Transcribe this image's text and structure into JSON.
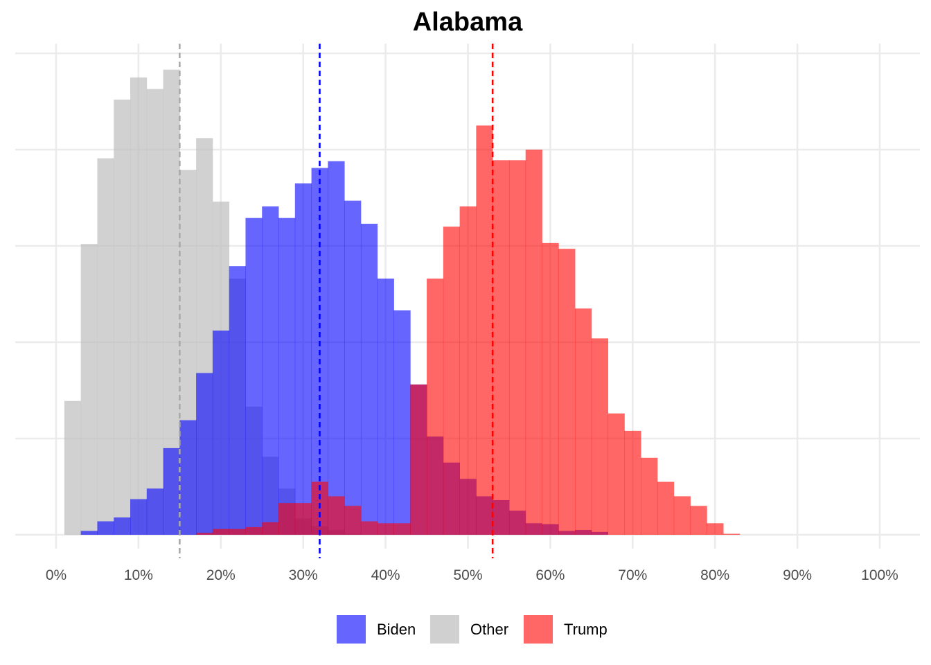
{
  "chart_data": {
    "type": "histogram",
    "title": "Alabama",
    "xlabel": "",
    "ylabel": "",
    "xlim": [
      -0.05,
      1.05
    ],
    "ylim": [
      0,
      500
    ],
    "x_ticks": [
      {
        "value": 0.0,
        "label": "0%"
      },
      {
        "value": 0.1,
        "label": "10%"
      },
      {
        "value": 0.2,
        "label": "20%"
      },
      {
        "value": 0.3,
        "label": "30%"
      },
      {
        "value": 0.4,
        "label": "40%"
      },
      {
        "value": 0.5,
        "label": "50%"
      },
      {
        "value": 0.6,
        "label": "60%"
      },
      {
        "value": 0.7,
        "label": "70%"
      },
      {
        "value": 0.8,
        "label": "80%"
      },
      {
        "value": 0.9,
        "label": "90%"
      },
      {
        "value": 1.0,
        "label": "100%"
      }
    ],
    "y_grid": [
      0,
      100,
      200,
      300,
      400,
      500
    ],
    "bin_width": 0.02,
    "series": [
      {
        "name": "Other",
        "color": "#bebebe",
        "opacity": 0.7,
        "median": 0.15,
        "bins": [
          {
            "x0": 0.01,
            "count": 139
          },
          {
            "x0": 0.03,
            "count": 302
          },
          {
            "x0": 0.05,
            "count": 391
          },
          {
            "x0": 0.07,
            "count": 452
          },
          {
            "x0": 0.09,
            "count": 475
          },
          {
            "x0": 0.11,
            "count": 463
          },
          {
            "x0": 0.13,
            "count": 483
          },
          {
            "x0": 0.15,
            "count": 379
          },
          {
            "x0": 0.17,
            "count": 412
          },
          {
            "x0": 0.19,
            "count": 346
          },
          {
            "x0": 0.21,
            "count": 266
          },
          {
            "x0": 0.23,
            "count": 133
          },
          {
            "x0": 0.25,
            "count": 81
          },
          {
            "x0": 0.27,
            "count": 48
          },
          {
            "x0": 0.29,
            "count": 17
          },
          {
            "x0": 0.31,
            "count": 9
          },
          {
            "x0": 0.33,
            "count": 5
          },
          {
            "x0": 0.35,
            "count": 1
          }
        ]
      },
      {
        "name": "Biden",
        "color": "#0000ff",
        "opacity": 0.6,
        "median": 0.32,
        "bins": [
          {
            "x0": 0.03,
            "count": 4
          },
          {
            "x0": 0.05,
            "count": 14
          },
          {
            "x0": 0.07,
            "count": 18
          },
          {
            "x0": 0.09,
            "count": 37
          },
          {
            "x0": 0.11,
            "count": 48
          },
          {
            "x0": 0.13,
            "count": 90
          },
          {
            "x0": 0.15,
            "count": 119
          },
          {
            "x0": 0.17,
            "count": 168
          },
          {
            "x0": 0.19,
            "count": 212
          },
          {
            "x0": 0.21,
            "count": 279
          },
          {
            "x0": 0.23,
            "count": 329
          },
          {
            "x0": 0.25,
            "count": 341
          },
          {
            "x0": 0.27,
            "count": 329
          },
          {
            "x0": 0.29,
            "count": 365
          },
          {
            "x0": 0.31,
            "count": 381
          },
          {
            "x0": 0.33,
            "count": 388
          },
          {
            "x0": 0.35,
            "count": 347
          },
          {
            "x0": 0.37,
            "count": 323
          },
          {
            "x0": 0.39,
            "count": 266
          },
          {
            "x0": 0.41,
            "count": 233
          },
          {
            "x0": 0.43,
            "count": 156
          },
          {
            "x0": 0.45,
            "count": 102
          },
          {
            "x0": 0.47,
            "count": 75
          },
          {
            "x0": 0.49,
            "count": 58
          },
          {
            "x0": 0.51,
            "count": 40
          },
          {
            "x0": 0.53,
            "count": 36
          },
          {
            "x0": 0.55,
            "count": 25
          },
          {
            "x0": 0.57,
            "count": 12
          },
          {
            "x0": 0.59,
            "count": 11
          },
          {
            "x0": 0.61,
            "count": 4
          },
          {
            "x0": 0.63,
            "count": 5
          },
          {
            "x0": 0.65,
            "count": 3
          }
        ]
      },
      {
        "name": "Trump",
        "color": "#ff0000",
        "opacity": 0.6,
        "median": 0.53,
        "bins": [
          {
            "x0": 0.17,
            "count": 2
          },
          {
            "x0": 0.19,
            "count": 6
          },
          {
            "x0": 0.21,
            "count": 6
          },
          {
            "x0": 0.23,
            "count": 8
          },
          {
            "x0": 0.25,
            "count": 13
          },
          {
            "x0": 0.27,
            "count": 33
          },
          {
            "x0": 0.29,
            "count": 33
          },
          {
            "x0": 0.31,
            "count": 55
          },
          {
            "x0": 0.33,
            "count": 40
          },
          {
            "x0": 0.35,
            "count": 30
          },
          {
            "x0": 0.37,
            "count": 14
          },
          {
            "x0": 0.39,
            "count": 12
          },
          {
            "x0": 0.41,
            "count": 12
          },
          {
            "x0": 0.43,
            "count": 156
          },
          {
            "x0": 0.45,
            "count": 266
          },
          {
            "x0": 0.47,
            "count": 320
          },
          {
            "x0": 0.49,
            "count": 341
          },
          {
            "x0": 0.51,
            "count": 425
          },
          {
            "x0": 0.53,
            "count": 389
          },
          {
            "x0": 0.55,
            "count": 389
          },
          {
            "x0": 0.57,
            "count": 400
          },
          {
            "x0": 0.59,
            "count": 303
          },
          {
            "x0": 0.61,
            "count": 297
          },
          {
            "x0": 0.63,
            "count": 235
          },
          {
            "x0": 0.65,
            "count": 204
          },
          {
            "x0": 0.67,
            "count": 126
          },
          {
            "x0": 0.69,
            "count": 108
          },
          {
            "x0": 0.71,
            "count": 80
          },
          {
            "x0": 0.73,
            "count": 55
          },
          {
            "x0": 0.75,
            "count": 40
          },
          {
            "x0": 0.77,
            "count": 30
          },
          {
            "x0": 0.79,
            "count": 12
          },
          {
            "x0": 0.81,
            "count": 1
          }
        ]
      }
    ],
    "legend": {
      "position": "bottom",
      "entries": [
        {
          "label": "Biden",
          "color": "#6666ff"
        },
        {
          "label": "Other",
          "color": "#d0d0d0"
        },
        {
          "label": "Trump",
          "color": "#ff6666"
        }
      ]
    },
    "median_lines": [
      {
        "series": "Other",
        "value": 0.15,
        "color": "#a9a9a9",
        "style": "dashed"
      },
      {
        "series": "Biden",
        "value": 0.32,
        "color": "#0000ff",
        "style": "dashed"
      },
      {
        "series": "Trump",
        "value": 0.53,
        "color": "#ff0000",
        "style": "dashed"
      }
    ],
    "grid": true
  }
}
